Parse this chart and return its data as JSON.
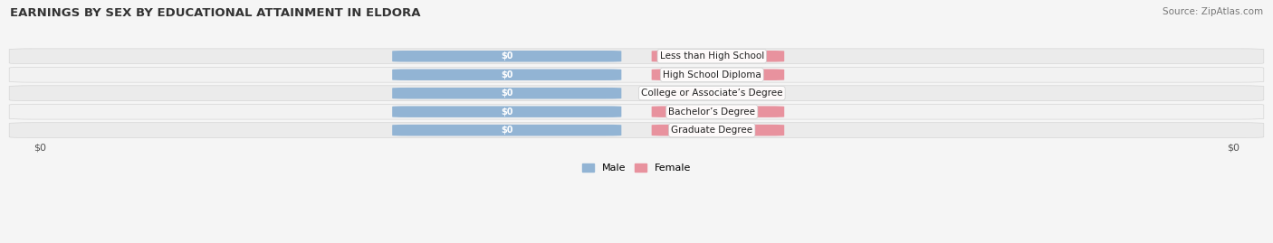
{
  "title": "EARNINGS BY SEX BY EDUCATIONAL ATTAINMENT IN ELDORA",
  "source": "Source: ZipAtlas.com",
  "categories": [
    "Less than High School",
    "High School Diploma",
    "College or Associate’s Degree",
    "Bachelor’s Degree",
    "Graduate Degree"
  ],
  "male_values": [
    0,
    0,
    0,
    0,
    0
  ],
  "female_values": [
    0,
    0,
    0,
    0,
    0
  ],
  "male_color": "#92b4d4",
  "female_color": "#e8929e",
  "male_label": "Male",
  "female_label": "Female",
  "value_label": "$0",
  "xlabel_left": "$0",
  "xlabel_right": "$0",
  "title_fontsize": 9.5,
  "source_fontsize": 7.5,
  "bar_height": 0.62,
  "row_colors": [
    "#ebebeb",
    "#f2f2f2",
    "#ebebeb",
    "#f2f2f2",
    "#ebebeb"
  ],
  "fig_bg": "#f5f5f5",
  "figsize": [
    14.06,
    2.69
  ],
  "dpi": 100
}
